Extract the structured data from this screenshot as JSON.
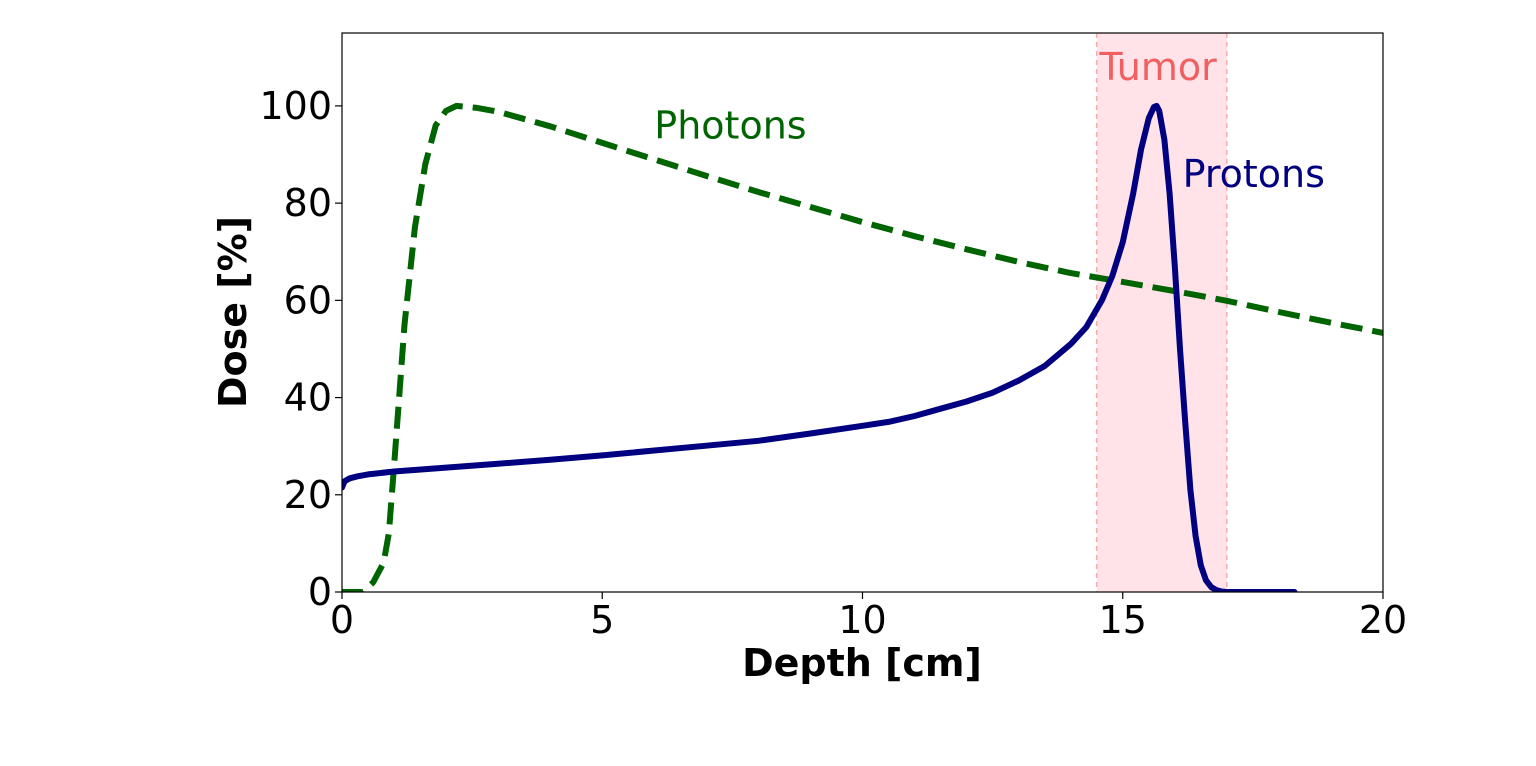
{
  "chart_data": {
    "type": "line",
    "xlabel": "Depth [cm]",
    "ylabel": "Dose [%]",
    "xlim": [
      0,
      20
    ],
    "ylim": [
      0,
      115
    ],
    "xticks": [
      0,
      5,
      10,
      15,
      20
    ],
    "yticks": [
      0,
      20,
      40,
      60,
      80,
      100
    ],
    "grid": false,
    "legend": "none",
    "series": [
      {
        "name": "Photons",
        "style": "dashed",
        "color": "#006400",
        "x": [
          0,
          0.4,
          0.6,
          0.8,
          0.9,
          1.0,
          1.2,
          1.4,
          1.6,
          1.8,
          2.0,
          2.2,
          2.6,
          3,
          4,
          5,
          6,
          7,
          8,
          9,
          10,
          11,
          12,
          13,
          14,
          15,
          16,
          17,
          18,
          19,
          20
        ],
        "y": [
          0,
          0,
          2,
          6,
          12,
          26,
          55,
          75,
          88,
          96,
          99,
          100,
          99.6,
          98.8,
          95.8,
          92.4,
          89,
          85.6,
          82.3,
          79.2,
          76.1,
          73.2,
          70.5,
          67.9,
          65.6,
          63.8,
          61.9,
          59.9,
          57.6,
          55.4,
          53.3
        ]
      },
      {
        "name": "Protons",
        "style": "solid",
        "color": "#000080",
        "x": [
          0,
          0.05,
          0.15,
          0.3,
          0.5,
          1,
          2,
          3,
          4,
          5,
          6,
          7,
          8,
          9,
          10,
          10.5,
          11,
          11.5,
          12,
          12.5,
          13,
          13.5,
          14,
          14.3,
          14.6,
          14.8,
          15.0,
          15.2,
          15.35,
          15.5,
          15.6,
          15.65,
          15.7,
          15.8,
          15.9,
          16.0,
          16.1,
          16.2,
          16.3,
          16.4,
          16.5,
          16.6,
          16.7,
          16.8,
          16.9,
          17.0,
          17.2,
          17.5,
          18.0,
          18.3
        ],
        "y": [
          21.5,
          22.8,
          23.4,
          23.8,
          24.2,
          24.8,
          25.6,
          26.4,
          27.2,
          28.1,
          29.1,
          30.1,
          31.1,
          32.6,
          34.2,
          35.0,
          36.2,
          37.7,
          39.2,
          41.0,
          43.5,
          46.5,
          51.0,
          54.5,
          60.0,
          65.0,
          72.0,
          82.0,
          91.0,
          97.5,
          99.8,
          100.0,
          99.0,
          93.0,
          82.0,
          67.0,
          50.0,
          35.0,
          21.0,
          11.5,
          5.5,
          2.4,
          1.0,
          0.4,
          0.1,
          0,
          0,
          0,
          0,
          0
        ]
      }
    ],
    "shaded_region": {
      "label": "Tumor",
      "x": [
        14.5,
        17.0
      ],
      "color": "#ffc0cb"
    },
    "annotations": [
      {
        "text": "Photons",
        "x": 6.0,
        "y": 96,
        "color": "#006400"
      },
      {
        "text": "Protons",
        "x": 16.15,
        "y": 86,
        "color": "#000080"
      },
      {
        "text": "Tumor",
        "x": 14.55,
        "y": 108,
        "color": "#f06060"
      }
    ]
  }
}
